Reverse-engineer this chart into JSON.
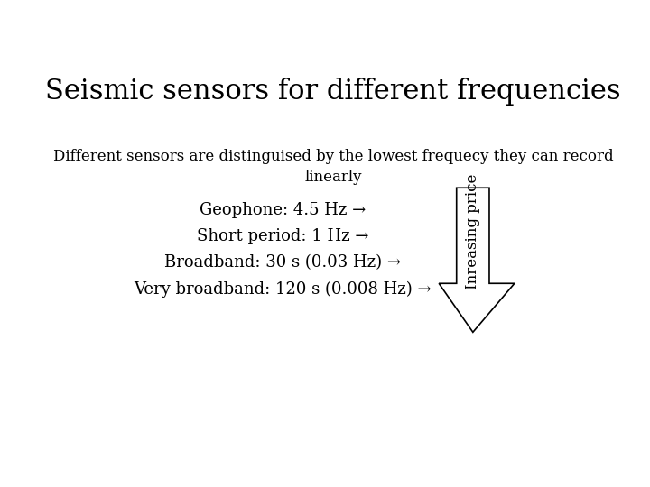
{
  "title": "Seismic sensors for different frequencies",
  "subtitle_line1": "Different sensors are distinguised by the lowest frequecy they can record",
  "subtitle_line2": "linearly",
  "items": [
    "Geophone: 4.5 Hz →",
    "Short period: 1 Hz →",
    "Broadband: 30 s (0.03 Hz) →",
    "Very broadband: 120 s (0.008 Hz) →"
  ],
  "arrow_label": "Inreasing price",
  "bg_color": "#ffffff",
  "text_color": "#000000",
  "title_fontsize": 22,
  "subtitle_fontsize": 12,
  "item_fontsize": 13,
  "arrow_label_fontsize": 12,
  "title_font": "serif",
  "body_font": "serif"
}
